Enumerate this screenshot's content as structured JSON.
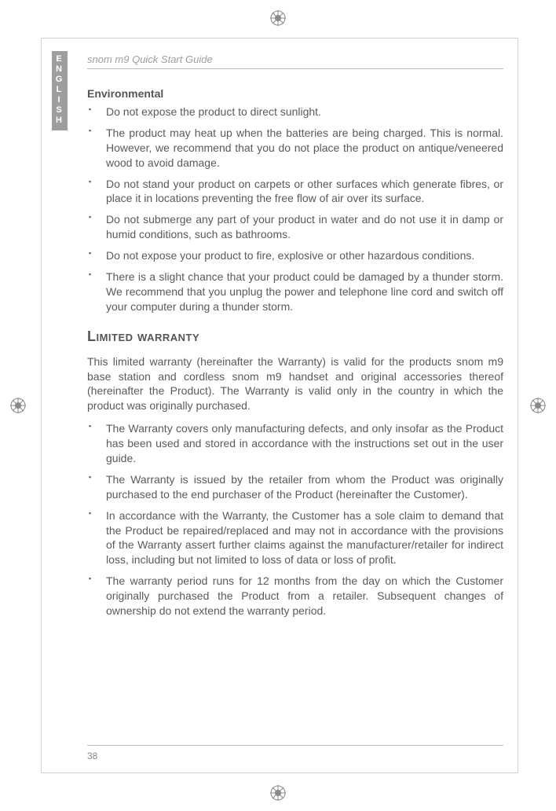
{
  "lang_tab": "ENGLISH",
  "header": "snom m9 Quick Start Guide",
  "page_number": "38",
  "env": {
    "heading": "Environmental",
    "items": [
      "Do not expose the product to direct sunlight.",
      "The product may heat up when the batteries are being charged. This is normal. However, we recommend that you do not place the product on antique/veneered wood to avoid damage.",
      "Do not stand your product on carpets or other surfaces which generate fibres, or place it in locations preventing the free flow of air over its surface.",
      "Do not submerge any part of your product in water and do not use it in damp or humid conditions, such as bathrooms.",
      "Do not expose your product to fire, explosive or other hazardous conditions.",
      "There is a slight chance that your product could be damaged by a thunder storm. We recommend that you unplug the power and telephone line cord and switch off your computer during a thunder storm."
    ]
  },
  "warranty": {
    "heading": "Limited warranty",
    "intro": "This limited warranty (hereinafter the Warranty) is valid for the products snom m9 base station and cordless snom m9 handset and original accessories thereof (hereinafter the Product). The Warranty is valid only in the country in which the product was originally purchased.",
    "items": [
      "The Warranty covers only manufacturing defects, and only insofar as the Product has been used and stored in accordance with the instructions set out in the user guide.",
      "The Warranty is issued by the retailer from whom the Product was originally purchased to the end purchaser of the Product (hereinafter the Customer).",
      "In accordance with the Warranty, the Customer has a sole claim to demand that the Product be repaired/replaced and may not in accordance with the provisions of the Warranty assert further claims against the manufacturer/retailer for indirect loss, including but not limited to loss of data or loss of profit.",
      "The warranty period runs for 12 months from the day on which the Customer originally purchased the Product from a retailer. Subsequent changes of ownership do not extend the warranty period."
    ]
  },
  "colors": {
    "text": "#5a5a5a",
    "tab_bg": "#9e9e9e",
    "rule": "#bdbdbd"
  }
}
